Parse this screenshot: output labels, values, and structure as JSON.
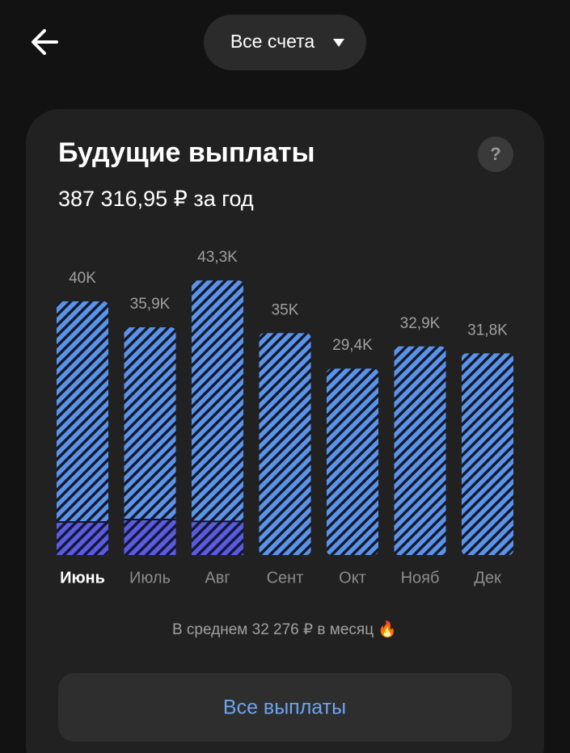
{
  "header": {
    "account": "Все счета"
  },
  "card": {
    "title": "Будущие выплаты",
    "total": "387 316,95 ₽ за год",
    "help": "?",
    "average": "В среднем 32 276 ₽ в месяц 🔥",
    "button": "Все выплаты"
  },
  "chart_data": {
    "type": "bar",
    "categories": [
      "Июнь",
      "Июль",
      "Авг",
      "Сент",
      "Окт",
      "Нояб",
      "Дек"
    ],
    "values": [
      40,
      35.9,
      43.3,
      35,
      29.4,
      32.9,
      31.8
    ],
    "value_labels": [
      "40K",
      "35,9K",
      "43,3K",
      "35K",
      "29,4K",
      "32,9K",
      "31,8K"
    ],
    "color": "#5b93e8",
    "overlay": {
      "color": "#5a5ce0",
      "values": [
        5.2,
        5.6,
        5.3,
        null,
        null,
        null,
        null
      ]
    },
    "selected": 0,
    "ylim": [
      0,
      40
    ]
  }
}
